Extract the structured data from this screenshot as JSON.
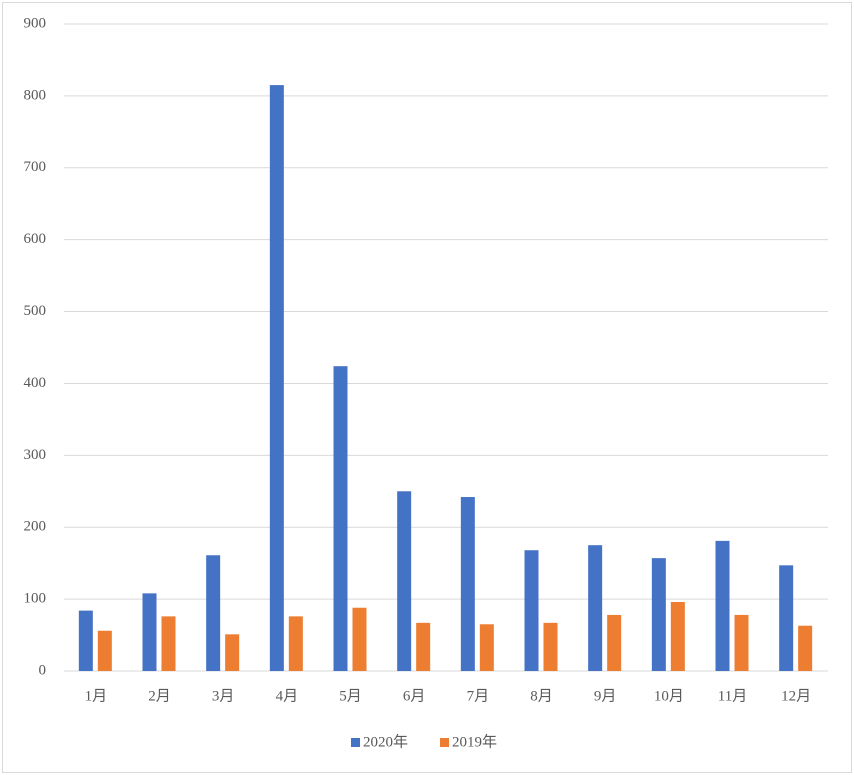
{
  "chart_data": {
    "type": "bar",
    "categories": [
      "1月",
      "2月",
      "3月",
      "4月",
      "5月",
      "6月",
      "7月",
      "8月",
      "9月",
      "10月",
      "11月",
      "12月"
    ],
    "series": [
      {
        "name": "2020年",
        "color": "#4472c4",
        "values": [
          84,
          108,
          161,
          815,
          424,
          250,
          242,
          168,
          175,
          157,
          181,
          147
        ]
      },
      {
        "name": "2019年",
        "color": "#ed7d31",
        "values": [
          56,
          76,
          51,
          76,
          88,
          67,
          65,
          67,
          78,
          96,
          78,
          63
        ]
      }
    ],
    "ylim": [
      0,
      900
    ],
    "yticks": [
      0,
      100,
      200,
      300,
      400,
      500,
      600,
      700,
      800,
      900
    ],
    "grid": true,
    "legend": "bottom"
  }
}
